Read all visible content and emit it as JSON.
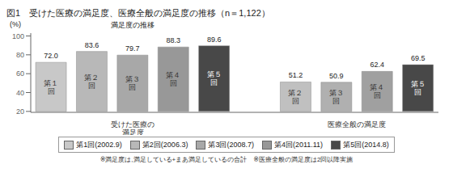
{
  "chart_data": {
    "type": "bar",
    "title": "図1　受けた医療の満足度、医療全般の満足度の推移（n＝1,122）",
    "subtitle": "満足度の推移",
    "ylabel": "(%)",
    "groups": [
      {
        "label": "受けた医療の\n満足度",
        "categories": [
          "第１\n回",
          "第２\n回",
          "第３\n回",
          "第４\n回",
          "第５\n回"
        ],
        "values": [
          72.0,
          83.6,
          79.7,
          88.3,
          89.6
        ],
        "value_labels": [
          "72.0",
          "83.6",
          "79.7",
          "88.3",
          "89.6"
        ],
        "colors": [
          "#c8c8c8",
          "#b8b8b8",
          "#a8a8a8",
          "#989898",
          "#484848"
        ]
      },
      {
        "label": "医療全般の満足度",
        "categories": [
          "第２\n回",
          "第３\n回",
          "第４\n回",
          "第５\n回"
        ],
        "values": [
          51.2,
          50.9,
          62.4,
          69.5
        ],
        "value_labels": [
          "51.2",
          "50.9",
          "62.4",
          "69.5"
        ],
        "colors": [
          "#c0c0c0",
          "#b0b0b0",
          "#a0a0a0",
          "#484848"
        ]
      }
    ],
    "ylim": [
      19,
      103
    ],
    "yticks": [
      20,
      40,
      60,
      80,
      100
    ],
    "data_labels": true,
    "grid": false,
    "legend": "bottom",
    "legend_entries": [
      {
        "name": "第1回(2002.9)",
        "color": "#c8c8c8"
      },
      {
        "name": "第2回(2006.3)",
        "color": "#b8b8b8"
      },
      {
        "name": "第3回(2008.7)",
        "color": "#a8a8a8"
      },
      {
        "name": "第4回(2011.11)",
        "color": "#989898"
      },
      {
        "name": "第5回(2014.8)",
        "color": "#484848"
      }
    ],
    "footnote": "※満足度は,満足している+まあ満足しているの合計　※医療全般の満足度は2回以降実施"
  }
}
